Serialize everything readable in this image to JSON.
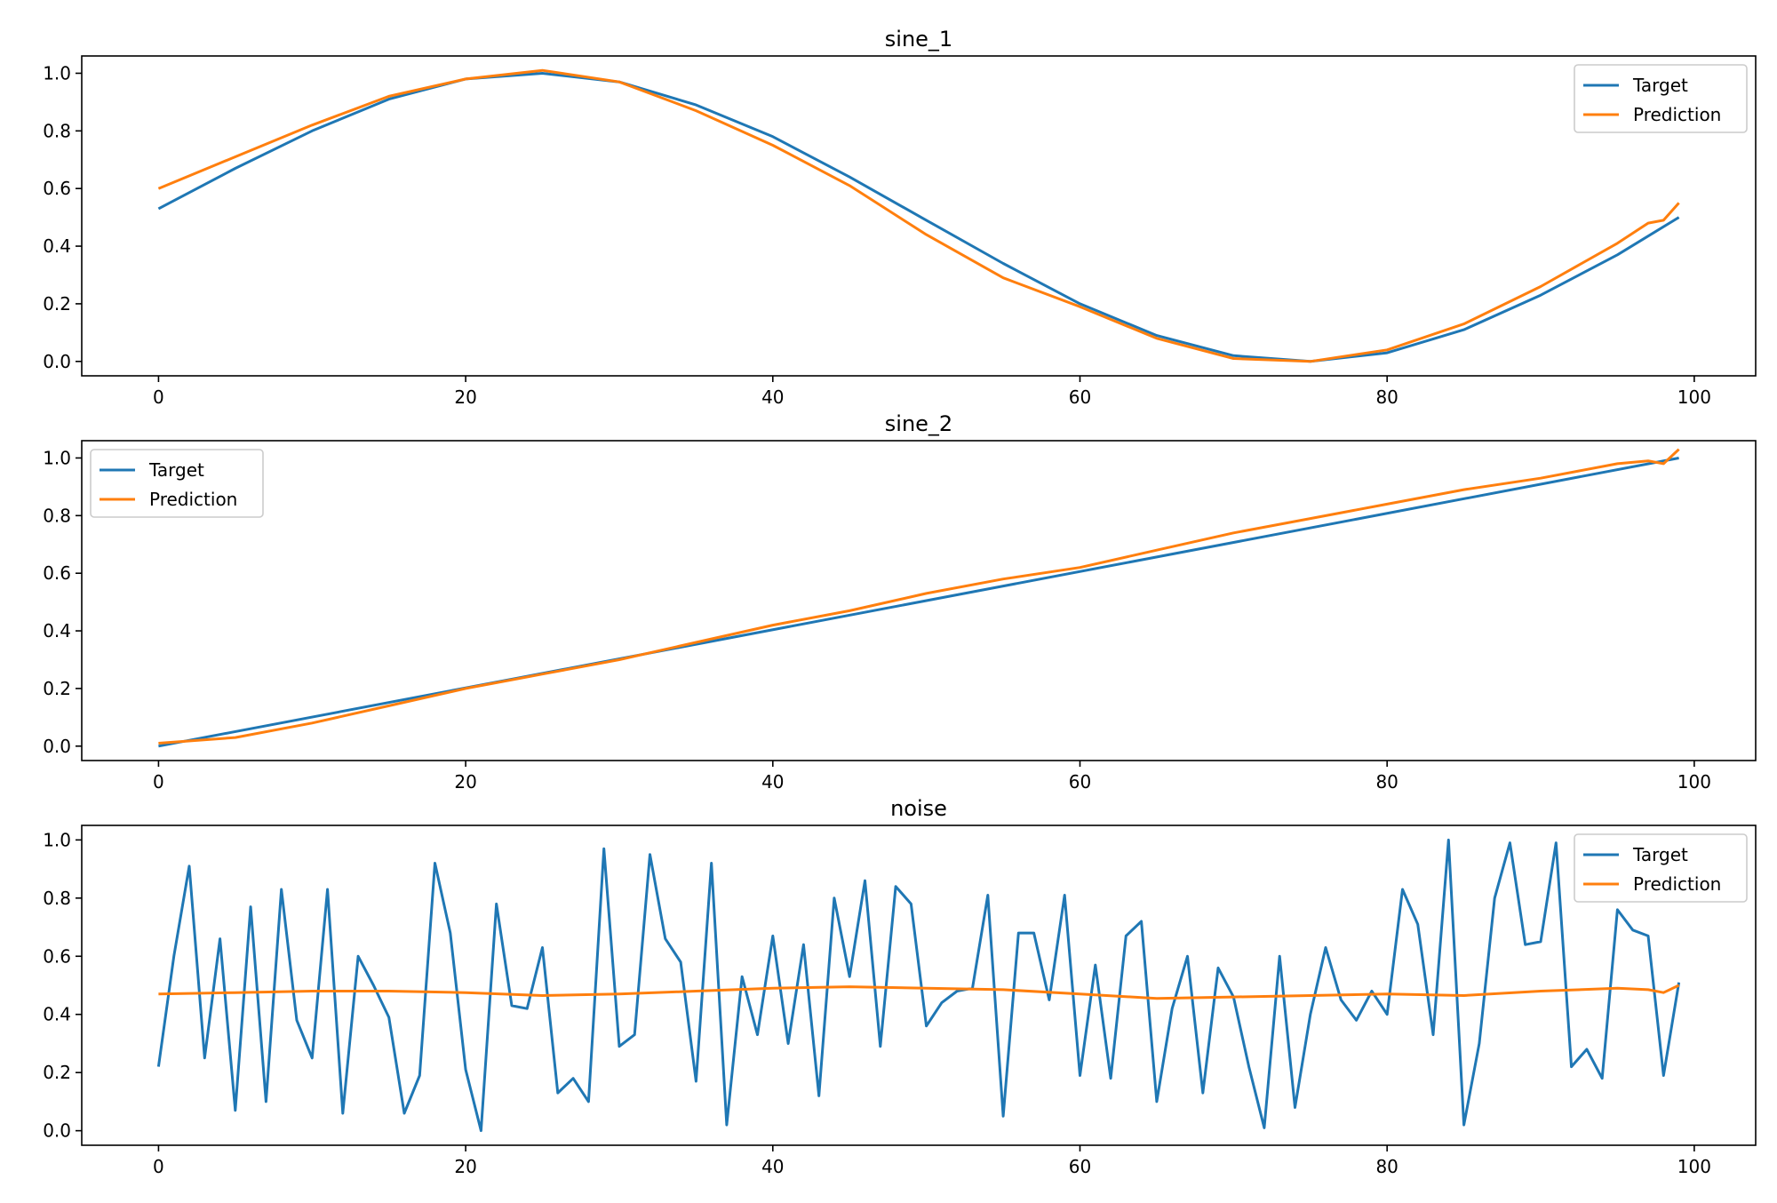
{
  "chart_data": [
    {
      "type": "line",
      "title": "sine_1",
      "xlim": [
        -5,
        104
      ],
      "ylim": [
        -0.05,
        1.06
      ],
      "xticks": [
        0,
        20,
        40,
        60,
        80,
        100
      ],
      "xtick_labels": [
        "0",
        "20",
        "40",
        "60",
        "80",
        "100"
      ],
      "yticks": [
        0.0,
        0.2,
        0.4,
        0.6,
        0.8,
        1.0
      ],
      "ytick_labels": [
        "0.0",
        "0.2",
        "0.4",
        "0.6",
        "0.8",
        "1.0"
      ],
      "grid": false,
      "legend": {
        "position": "top-right",
        "entries": [
          "Target",
          "Prediction"
        ]
      },
      "series": [
        {
          "name": "Target",
          "color": "#1f77b4",
          "x": [
            0,
            5,
            10,
            15,
            20,
            25,
            30,
            35,
            40,
            45,
            50,
            55,
            60,
            65,
            70,
            75,
            80,
            85,
            90,
            95,
            99
          ],
          "y": [
            0.53,
            0.67,
            0.8,
            0.91,
            0.98,
            1.0,
            0.97,
            0.89,
            0.78,
            0.64,
            0.49,
            0.34,
            0.2,
            0.09,
            0.02,
            0.0,
            0.03,
            0.11,
            0.23,
            0.37,
            0.5
          ]
        },
        {
          "name": "Prediction",
          "color": "#ff7f0e",
          "x": [
            0,
            5,
            10,
            15,
            20,
            25,
            30,
            35,
            40,
            45,
            50,
            55,
            60,
            65,
            70,
            75,
            80,
            85,
            90,
            95,
            97,
            98,
            99
          ],
          "y": [
            0.6,
            0.71,
            0.82,
            0.92,
            0.98,
            1.01,
            0.97,
            0.87,
            0.75,
            0.61,
            0.44,
            0.29,
            0.19,
            0.08,
            0.01,
            0.0,
            0.04,
            0.13,
            0.26,
            0.41,
            0.48,
            0.49,
            0.55
          ]
        }
      ]
    },
    {
      "type": "line",
      "title": "sine_2",
      "xlim": [
        -5,
        104
      ],
      "ylim": [
        -0.05,
        1.06
      ],
      "xticks": [
        0,
        20,
        40,
        60,
        80,
        100
      ],
      "xtick_labels": [
        "0",
        "20",
        "40",
        "60",
        "80",
        "100"
      ],
      "yticks": [
        0.0,
        0.2,
        0.4,
        0.6,
        0.8,
        1.0
      ],
      "ytick_labels": [
        "0.0",
        "0.2",
        "0.4",
        "0.6",
        "0.8",
        "1.0"
      ],
      "grid": false,
      "legend": {
        "position": "top-left",
        "entries": [
          "Target",
          "Prediction"
        ]
      },
      "series": [
        {
          "name": "Target",
          "color": "#1f77b4",
          "x": [
            0,
            99
          ],
          "y": [
            0.0,
            1.0
          ]
        },
        {
          "name": "Prediction",
          "color": "#ff7f0e",
          "x": [
            0,
            5,
            10,
            15,
            20,
            25,
            30,
            35,
            40,
            45,
            50,
            55,
            60,
            65,
            70,
            75,
            80,
            85,
            90,
            95,
            97,
            98,
            99
          ],
          "y": [
            0.01,
            0.03,
            0.08,
            0.14,
            0.2,
            0.25,
            0.3,
            0.36,
            0.42,
            0.47,
            0.53,
            0.58,
            0.62,
            0.68,
            0.74,
            0.79,
            0.84,
            0.89,
            0.93,
            0.98,
            0.99,
            0.98,
            1.03
          ]
        }
      ]
    },
    {
      "type": "line",
      "title": "noise",
      "xlim": [
        -5,
        104
      ],
      "ylim": [
        -0.05,
        1.05
      ],
      "xticks": [
        0,
        20,
        40,
        60,
        80,
        100
      ],
      "xtick_labels": [
        "0",
        "20",
        "40",
        "60",
        "80",
        "100"
      ],
      "yticks": [
        0.0,
        0.2,
        0.4,
        0.6,
        0.8,
        1.0
      ],
      "ytick_labels": [
        "0.0",
        "0.2",
        "0.4",
        "0.6",
        "0.8",
        "1.0"
      ],
      "grid": false,
      "legend": {
        "position": "top-right",
        "entries": [
          "Target",
          "Prediction"
        ]
      },
      "series": [
        {
          "name": "Target",
          "color": "#1f77b4",
          "x": [
            0,
            1,
            2,
            3,
            4,
            5,
            6,
            7,
            8,
            9,
            10,
            11,
            12,
            13,
            14,
            15,
            16,
            17,
            18,
            19,
            20,
            21,
            22,
            23,
            24,
            25,
            26,
            27,
            28,
            29,
            30,
            31,
            32,
            33,
            34,
            35,
            36,
            37,
            38,
            39,
            40,
            41,
            42,
            43,
            44,
            45,
            46,
            47,
            48,
            49,
            50,
            51,
            52,
            53,
            54,
            55,
            56,
            57,
            58,
            59,
            60,
            61,
            62,
            63,
            64,
            65,
            66,
            67,
            68,
            69,
            70,
            71,
            72,
            73,
            74,
            75,
            76,
            77,
            78,
            79,
            80,
            81,
            82,
            83,
            84,
            85,
            86,
            87,
            88,
            89,
            90,
            91,
            92,
            93,
            94,
            95,
            96,
            97,
            98,
            99
          ],
          "y": [
            0.22,
            0.6,
            0.91,
            0.25,
            0.66,
            0.07,
            0.77,
            0.1,
            0.83,
            0.38,
            0.25,
            0.83,
            0.06,
            0.6,
            0.5,
            0.39,
            0.06,
            0.19,
            0.92,
            0.68,
            0.21,
            0.0,
            0.78,
            0.43,
            0.42,
            0.63,
            0.13,
            0.18,
            0.1,
            0.97,
            0.29,
            0.33,
            0.95,
            0.66,
            0.58,
            0.17,
            0.92,
            0.02,
            0.53,
            0.33,
            0.67,
            0.3,
            0.64,
            0.12,
            0.8,
            0.53,
            0.86,
            0.29,
            0.84,
            0.78,
            0.36,
            0.44,
            0.48,
            0.49,
            0.81,
            0.05,
            0.68,
            0.68,
            0.45,
            0.81,
            0.19,
            0.57,
            0.18,
            0.67,
            0.72,
            0.1,
            0.42,
            0.6,
            0.13,
            0.56,
            0.46,
            0.22,
            0.01,
            0.6,
            0.08,
            0.4,
            0.63,
            0.45,
            0.38,
            0.48,
            0.4,
            0.83,
            0.71,
            0.33,
            1.0,
            0.02,
            0.3,
            0.8,
            0.99,
            0.64,
            0.65,
            0.99,
            0.22,
            0.28,
            0.18,
            0.76,
            0.69,
            0.67,
            0.19,
            0.51
          ]
        },
        {
          "name": "Prediction",
          "color": "#ff7f0e",
          "x": [
            0,
            5,
            10,
            15,
            20,
            25,
            30,
            35,
            40,
            45,
            50,
            55,
            60,
            65,
            70,
            75,
            80,
            85,
            90,
            95,
            97,
            98,
            99
          ],
          "y": [
            0.47,
            0.475,
            0.48,
            0.48,
            0.475,
            0.465,
            0.47,
            0.48,
            0.49,
            0.495,
            0.49,
            0.485,
            0.47,
            0.455,
            0.46,
            0.465,
            0.47,
            0.465,
            0.48,
            0.49,
            0.485,
            0.475,
            0.5
          ]
        }
      ]
    }
  ]
}
